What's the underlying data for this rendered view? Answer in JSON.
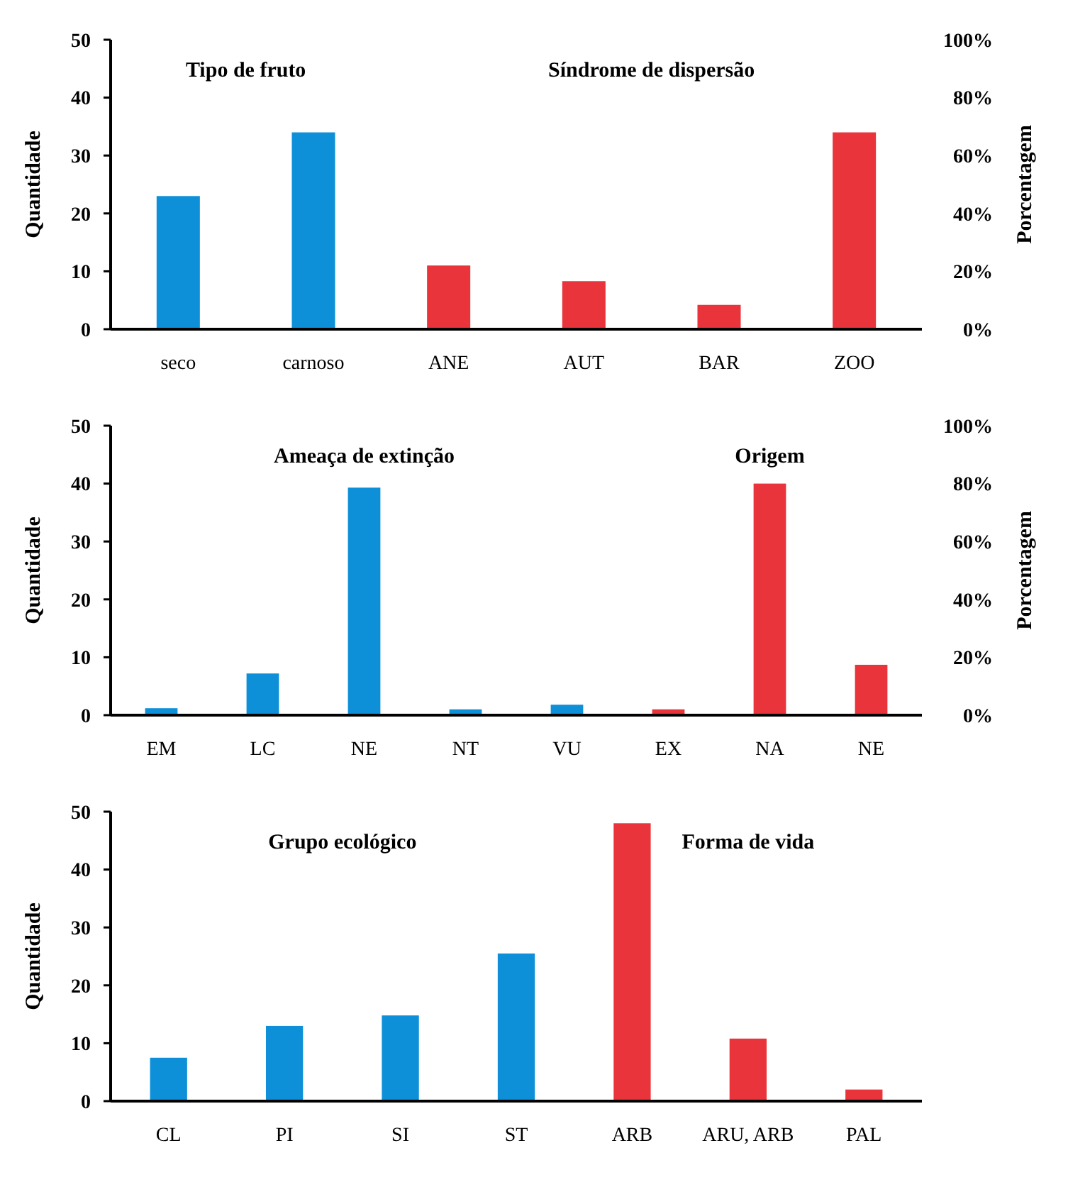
{
  "chart_data": [
    {
      "type": "bar",
      "ylabel": "Quantidade",
      "y2label": "Porcentagem",
      "categories": [
        "seco",
        "carnoso",
        "ANE",
        "AUT",
        "BAR",
        "ZOO"
      ],
      "annotations": [
        "Tipo de fruto",
        "Síndrome de dispersão"
      ],
      "series": [
        {
          "color": "#0e90d8",
          "values": [
            23,
            34,
            null,
            null,
            null,
            null
          ]
        },
        {
          "color": "#e8343a",
          "values": [
            null,
            null,
            11,
            8.3,
            4.2,
            34
          ]
        }
      ],
      "ylim": [
        0,
        50
      ],
      "yticks": [
        0,
        10,
        20,
        30,
        40,
        50
      ],
      "y2lim": [
        0,
        100
      ],
      "y2ticks": [
        {
          "value": 0,
          "label": "0%"
        },
        {
          "value": 20,
          "label": "20%"
        },
        {
          "value": 40,
          "label": "40%"
        },
        {
          "value": 60,
          "label": "60%"
        },
        {
          "value": 80,
          "label": "80%"
        },
        {
          "value": 100,
          "label": "100%"
        }
      ],
      "grid": false
    },
    {
      "type": "bar",
      "ylabel": "Quantidade",
      "y2label": "Porcentagem",
      "categories": [
        "EM",
        "LC",
        "NE",
        "NT",
        "VU",
        "EX",
        "NA",
        "NE"
      ],
      "annotations": [
        "Ameaça de extinção",
        "Origem"
      ],
      "series": [
        {
          "color": "#0e90d8",
          "values": [
            1.2,
            7.2,
            39.3,
            1,
            1.8,
            null,
            null,
            null
          ]
        },
        {
          "color": "#e8343a",
          "values": [
            null,
            null,
            null,
            null,
            null,
            1,
            40,
            8.7
          ]
        }
      ],
      "ylim": [
        0,
        50
      ],
      "yticks": [
        0,
        10,
        20,
        30,
        40,
        50
      ],
      "y2lim": [
        0,
        100
      ],
      "y2ticks": [
        {
          "value": 0,
          "label": "0%"
        },
        {
          "value": 20,
          "label": "20%"
        },
        {
          "value": 40,
          "label": "40%"
        },
        {
          "value": 60,
          "label": "60%"
        },
        {
          "value": 80,
          "label": "80%"
        },
        {
          "value": 100,
          "label": "100%"
        }
      ],
      "grid": false
    },
    {
      "type": "bar",
      "ylabel": "Quantidade",
      "categories": [
        "CL",
        "PI",
        "SI",
        "ST",
        "ARB",
        "ARU, ARB",
        "PAL"
      ],
      "annotations": [
        "Grupo ecológico",
        "Forma de vida"
      ],
      "series": [
        {
          "color": "#0e90d8",
          "values": [
            7.5,
            13,
            14.8,
            25.5,
            null,
            null,
            null
          ]
        },
        {
          "color": "#e8343a",
          "values": [
            null,
            null,
            null,
            null,
            48,
            10.8,
            2
          ]
        }
      ],
      "ylim": [
        0,
        50
      ],
      "yticks": [
        0,
        10,
        20,
        30,
        40,
        50
      ],
      "grid": false
    }
  ]
}
